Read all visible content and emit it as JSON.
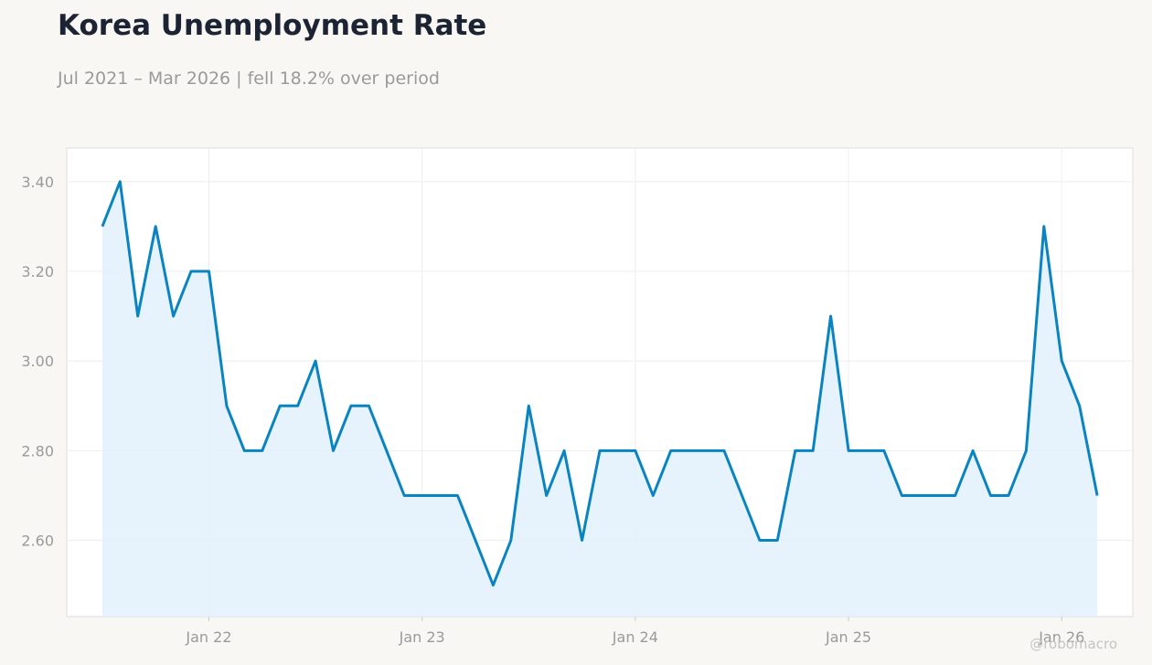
{
  "header": {
    "title": "Korea Unemployment Rate",
    "subtitle": "Jul 2021 – Mar 2026 | fell 18.2% over period"
  },
  "watermark": "@robomacro",
  "colors": {
    "line": "#0a84c1",
    "area": "#e3f1fb",
    "grid": "#eeeeee",
    "background": "#f8f7f4",
    "plot_background": "#ffffff"
  },
  "chart_data": {
    "type": "area",
    "title": "Korea Unemployment Rate",
    "subtitle": "Jul 2021 – Mar 2026 | fell 18.2% over period",
    "xlabel": "",
    "ylabel": "",
    "x_start": "2021-07",
    "x_ticks": [
      {
        "label": "Jan 22",
        "date": "2022-01"
      },
      {
        "label": "Jan 23",
        "date": "2023-01"
      },
      {
        "label": "Jan 24",
        "date": "2024-01"
      },
      {
        "label": "Jan 25",
        "date": "2025-01"
      },
      {
        "label": "Jan 26",
        "date": "2026-01"
      }
    ],
    "y_ticks": [
      "2.60",
      "2.80",
      "3.00",
      "3.20",
      "3.40"
    ],
    "y_tick_values": [
      2.6,
      2.8,
      3.0,
      3.2,
      3.4
    ],
    "xlim": [
      "2021-05",
      "2026-05"
    ],
    "ylim": [
      2.43,
      3.475
    ],
    "grid": true,
    "series": [
      {
        "values": [
          3.3,
          3.4,
          3.1,
          3.3,
          3.1,
          3.2,
          3.2,
          2.9,
          2.8,
          2.8,
          2.9,
          2.9,
          3.0,
          2.8,
          2.9,
          2.9,
          2.8,
          2.7,
          2.7,
          2.7,
          2.7,
          2.6,
          2.5,
          2.6,
          2.9,
          2.7,
          2.8,
          2.6,
          2.8,
          2.8,
          2.8,
          2.7,
          2.8,
          2.8,
          2.8,
          2.8,
          2.7,
          2.6,
          2.6,
          2.8,
          2.8,
          3.1,
          2.8,
          2.8,
          2.8,
          2.7,
          2.7,
          2.7,
          2.7,
          2.8,
          2.7,
          2.7,
          2.8,
          3.3,
          3.0,
          2.9,
          2.7
        ]
      }
    ]
  }
}
